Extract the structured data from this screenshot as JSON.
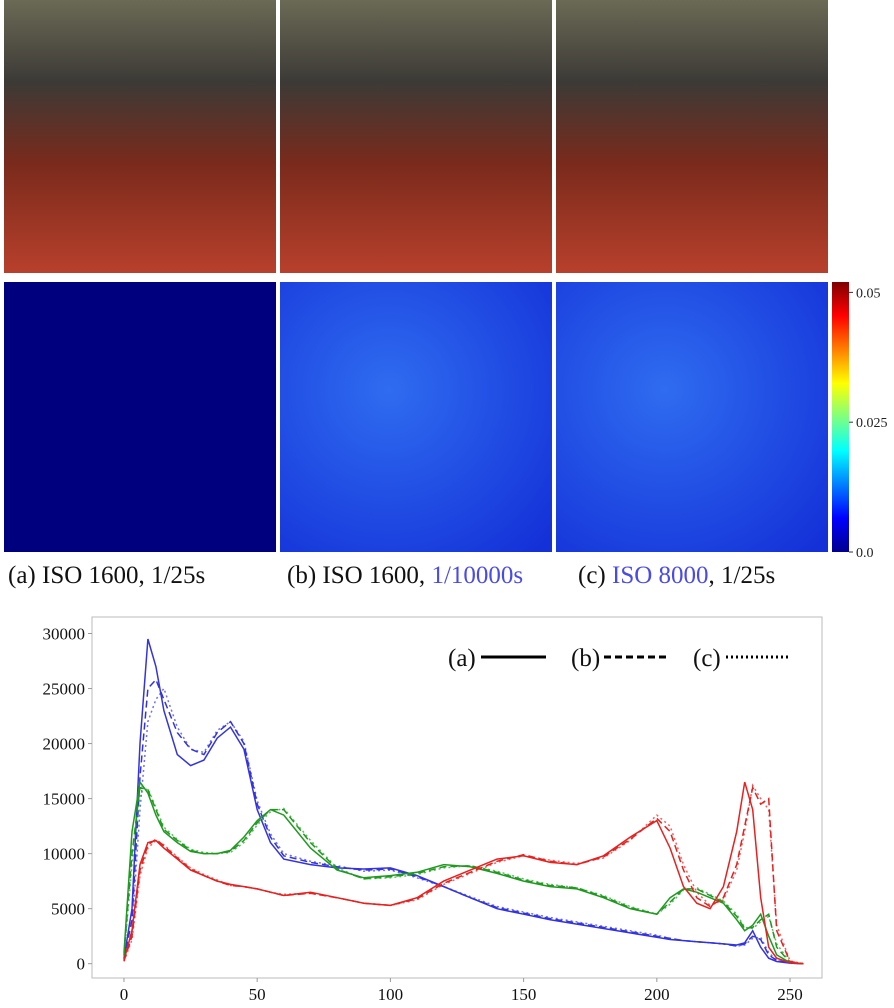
{
  "captions": [
    [
      "(a) ISO 1600, 1/25s"
    ],
    [
      "(b) ISO 1600, ",
      "1/10000s"
    ],
    [
      "(c) ",
      "ISO 8000",
      ", 1/25s"
    ]
  ],
  "colorbar": {
    "ticks": [
      {
        "value": 0,
        "label": "0.0"
      },
      0.025,
      0.05
    ],
    "lim": [
      0,
      0.052
    ]
  },
  "chart_data": {
    "type": "line",
    "x": [
      0,
      3,
      6,
      9,
      12,
      15,
      20,
      25,
      30,
      35,
      40,
      45,
      50,
      55,
      60,
      70,
      80,
      90,
      100,
      110,
      120,
      130,
      140,
      150,
      160,
      170,
      180,
      190,
      200,
      205,
      210,
      215,
      220,
      225,
      230,
      233,
      236,
      239,
      242,
      245,
      250,
      255
    ],
    "series": [
      {
        "color": "#3333e0",
        "style": "solid",
        "values": [
          500,
          5000,
          20000,
          29500,
          27000,
          23000,
          19000,
          18000,
          18500,
          20500,
          21500,
          19500,
          14000,
          11000,
          9500,
          9000,
          8700,
          8600,
          8700,
          8000,
          7000,
          6000,
          5000,
          4500,
          4000,
          3600,
          3200,
          2800,
          2400,
          2200,
          2100,
          2000,
          1900,
          1800,
          1700,
          1900,
          3000,
          1500,
          500,
          200,
          50,
          0
        ]
      },
      {
        "color": "#3333e0",
        "style": "dashed",
        "values": [
          400,
          4000,
          17000,
          25000,
          25800,
          24000,
          21000,
          19500,
          19000,
          21000,
          22000,
          20000,
          14500,
          11500,
          9800,
          9200,
          8800,
          8500,
          8600,
          7900,
          7000,
          6000,
          5100,
          4600,
          4100,
          3700,
          3300,
          2900,
          2500,
          2300,
          2100,
          2000,
          1900,
          1800,
          1600,
          1800,
          2500,
          2200,
          800,
          300,
          50,
          0
        ]
      },
      {
        "color": "#3333e0",
        "style": "dotted",
        "values": [
          300,
          3000,
          14000,
          22000,
          24000,
          25000,
          21500,
          19500,
          19200,
          21200,
          22000,
          20200,
          14800,
          11800,
          10000,
          9300,
          8900,
          8400,
          8500,
          7800,
          7000,
          6100,
          5200,
          4700,
          4200,
          3800,
          3400,
          3000,
          2600,
          2300,
          2100,
          2000,
          1900,
          1800,
          1600,
          1700,
          2300,
          2400,
          1000,
          300,
          50,
          0
        ]
      },
      {
        "color": "#1f9a1f",
        "style": "solid",
        "values": [
          1000,
          12000,
          16500,
          15500,
          13500,
          12000,
          11000,
          10200,
          10000,
          10000,
          10300,
          11500,
          13000,
          14000,
          13500,
          10500,
          8500,
          7800,
          8000,
          8300,
          9000,
          8800,
          8200,
          7500,
          7000,
          6800,
          6000,
          5000,
          4500,
          6000,
          6800,
          6500,
          6000,
          5500,
          4000,
          3000,
          3500,
          4500,
          2500,
          800,
          100,
          0
        ]
      },
      {
        "color": "#1f9a1f",
        "style": "dashed",
        "values": [
          800,
          10000,
          16000,
          15800,
          14000,
          12200,
          11200,
          10300,
          10000,
          10000,
          10200,
          11200,
          12800,
          14000,
          14000,
          11000,
          8600,
          7700,
          7900,
          8200,
          8800,
          8900,
          8300,
          7600,
          7100,
          6900,
          6100,
          5100,
          4500,
          5600,
          6800,
          6800,
          6200,
          5600,
          4300,
          3200,
          3300,
          4000,
          4500,
          1500,
          100,
          0
        ]
      },
      {
        "color": "#1f9a1f",
        "style": "dotted",
        "values": [
          700,
          9000,
          15500,
          15900,
          14200,
          12400,
          11300,
          10400,
          10100,
          10000,
          10100,
          11000,
          12600,
          13800,
          14100,
          11200,
          8700,
          7700,
          7800,
          8100,
          8700,
          8900,
          8400,
          7700,
          7200,
          6900,
          6200,
          5200,
          4500,
          5400,
          6700,
          6900,
          6300,
          5700,
          4500,
          3300,
          3200,
          3800,
          4300,
          1800,
          150,
          0
        ]
      },
      {
        "color": "#e8201f",
        "style": "solid",
        "values": [
          300,
          3000,
          9000,
          11000,
          11200,
          10500,
          9500,
          8500,
          8000,
          7500,
          7200,
          7000,
          6800,
          6500,
          6200,
          6500,
          6000,
          5500,
          5300,
          6000,
          7500,
          8500,
          9500,
          9800,
          9200,
          9000,
          9800,
          11500,
          13000,
          10500,
          7000,
          5500,
          5000,
          7000,
          12000,
          16500,
          14000,
          6000,
          1500,
          500,
          100,
          0
        ]
      },
      {
        "color": "#e8201f",
        "style": "dashed",
        "values": [
          250,
          2500,
          8500,
          10800,
          11300,
          10700,
          9600,
          8600,
          8000,
          7500,
          7100,
          7000,
          6800,
          6500,
          6200,
          6400,
          6000,
          5500,
          5300,
          5900,
          7300,
          8300,
          9300,
          9900,
          9300,
          9000,
          9700,
          11300,
          13200,
          12000,
          8500,
          6000,
          5200,
          6000,
          9000,
          12500,
          16000,
          14500,
          15000,
          3000,
          200,
          0
        ]
      },
      {
        "color": "#e8201f",
        "style": "dotted",
        "values": [
          200,
          2200,
          8000,
          10500,
          11200,
          10800,
          9700,
          8700,
          8100,
          7600,
          7100,
          7000,
          6800,
          6500,
          6300,
          6400,
          6000,
          5500,
          5300,
          5800,
          7200,
          8200,
          9200,
          9800,
          9400,
          9100,
          9600,
          11200,
          13500,
          12500,
          9000,
          6500,
          5300,
          5800,
          8500,
          12000,
          16200,
          15000,
          14000,
          3500,
          250,
          0
        ]
      }
    ],
    "legend": {
      "entries": [
        "(a)",
        "(b)",
        "(c)"
      ],
      "styles": [
        "solid",
        "dashed",
        "dotted"
      ]
    },
    "xlim": [
      -12,
      262
    ],
    "ylim": [
      -1300,
      31500
    ],
    "xticks": [
      0,
      50,
      100,
      150,
      200,
      250
    ],
    "yticks": [
      0,
      5000,
      10000,
      15000,
      20000,
      25000,
      30000
    ]
  }
}
